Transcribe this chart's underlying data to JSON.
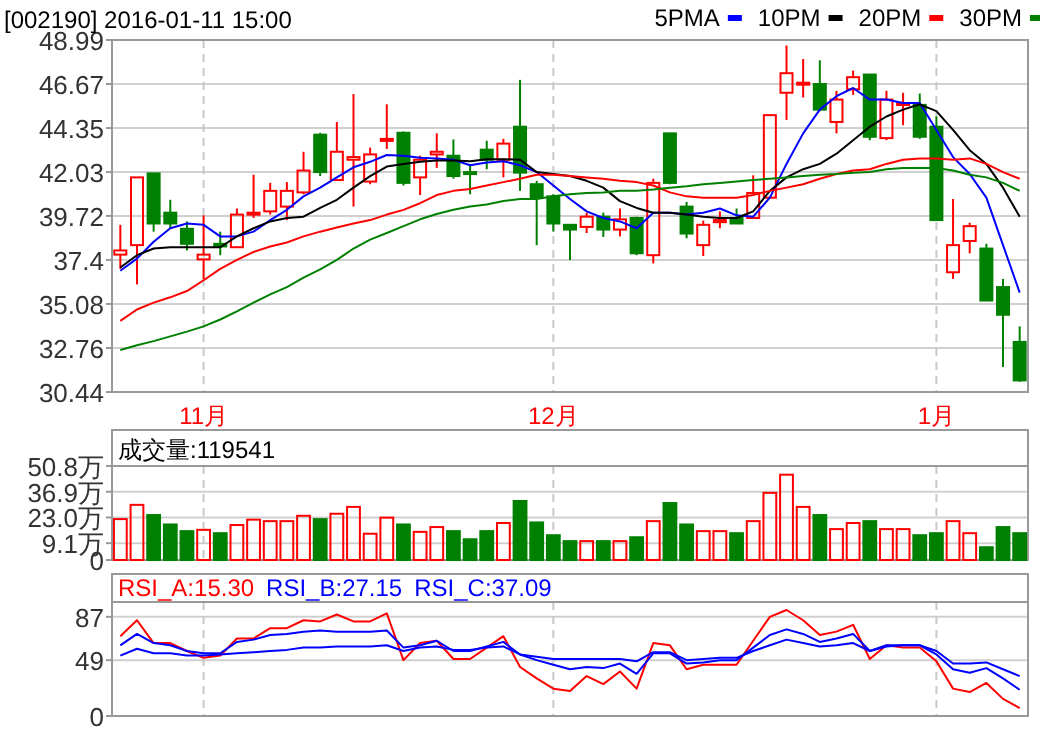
{
  "chart_data": [
    {
      "type": "candlestick",
      "title": "[002190] 2016-01-11 15:00",
      "categories": [
        null,
        null,
        null,
        null,
        null,
        "11月",
        null,
        null,
        null,
        null,
        null,
        null,
        null,
        null,
        null,
        null,
        null,
        null,
        null,
        null,
        null,
        null,
        null,
        null,
        null,
        null,
        "12月",
        null,
        null,
        null,
        null,
        null,
        null,
        null,
        null,
        null,
        null,
        null,
        null,
        null,
        null,
        null,
        null,
        null,
        null,
        null,
        null,
        null,
        null,
        "1月",
        null,
        null,
        null,
        null,
        null
      ],
      "ohlc": [
        [
          37.68,
          39.25,
          36.93,
          37.9
        ],
        [
          38.18,
          41.75,
          36.11,
          41.75
        ],
        [
          41.96,
          41.96,
          38.89,
          39.32
        ],
        [
          39.89,
          40.57,
          39.07,
          39.32
        ],
        [
          39.04,
          39.43,
          37.9,
          38.25
        ],
        [
          37.43,
          39.75,
          36.4,
          37.68
        ],
        [
          38.25,
          38.89,
          37.65,
          38.11
        ],
        [
          38.07,
          40.11,
          38.07,
          39.79
        ],
        [
          39.82,
          41.89,
          39.61,
          39.89
        ],
        [
          39.96,
          41.46,
          39.79,
          41.04
        ],
        [
          40.21,
          41.5,
          39.5,
          41.04
        ],
        [
          40.96,
          43.1,
          40.86,
          42.11
        ],
        [
          44.0,
          44.1,
          41.82,
          42.03
        ],
        [
          41.61,
          44.67,
          41.57,
          43.1
        ],
        [
          42.68,
          46.14,
          40.21,
          42.82
        ],
        [
          41.53,
          43.32,
          41.39,
          42.96
        ],
        [
          43.71,
          45.6,
          43.25,
          43.78
        ],
        [
          44.1,
          44.17,
          41.32,
          41.46
        ],
        [
          41.75,
          42.89,
          40.82,
          42.68
        ],
        [
          42.96,
          44.07,
          42.25,
          43.1
        ],
        [
          42.89,
          43.75,
          41.68,
          41.82
        ],
        [
          42.03,
          42.46,
          40.86,
          41.93
        ],
        [
          43.21,
          43.68,
          42.18,
          42.68
        ],
        [
          42.68,
          43.78,
          41.75,
          43.53
        ],
        [
          44.42,
          46.89,
          41.04,
          42.0
        ],
        [
          41.39,
          41.57,
          38.18,
          40.68
        ],
        [
          40.75,
          40.86,
          38.89,
          39.32
        ],
        [
          39.25,
          39.25,
          37.4,
          39.0
        ],
        [
          39.14,
          39.89,
          38.82,
          39.68
        ],
        [
          39.68,
          39.89,
          38.61,
          39.0
        ],
        [
          39.0,
          40.11,
          38.64,
          39.54
        ],
        [
          39.61,
          39.68,
          37.65,
          37.75
        ],
        [
          37.65,
          41.68,
          37.22,
          41.46
        ],
        [
          44.07,
          44.07,
          41.39,
          41.46
        ],
        [
          40.21,
          40.46,
          38.54,
          38.79
        ],
        [
          38.18,
          39.47,
          37.61,
          39.25
        ],
        [
          39.39,
          39.96,
          39.07,
          39.5
        ],
        [
          39.61,
          40.11,
          39.32,
          39.32
        ],
        [
          39.61,
          41.86,
          39.61,
          40.93
        ],
        [
          40.68,
          45.03,
          40.68,
          45.03
        ],
        [
          46.21,
          48.7,
          44.78,
          47.24
        ],
        [
          46.64,
          47.99,
          45.96,
          46.74
        ],
        [
          46.67,
          47.92,
          45.24,
          45.32
        ],
        [
          44.67,
          46.31,
          44.07,
          45.85
        ],
        [
          46.39,
          47.38,
          46.1,
          47.03
        ],
        [
          47.17,
          47.17,
          43.71,
          43.89
        ],
        [
          43.82,
          46.31,
          43.71,
          45.85
        ],
        [
          45.6,
          46.21,
          44.5,
          45.67
        ],
        [
          45.57,
          46.17,
          43.78,
          43.89
        ],
        [
          44.42,
          44.96,
          39.5,
          39.5
        ],
        [
          36.75,
          40.61,
          36.4,
          38.18
        ],
        [
          38.4,
          39.36,
          37.75,
          39.18
        ],
        [
          38.0,
          38.25,
          35.26,
          35.26
        ],
        [
          35.97,
          36.4,
          31.76,
          34.51
        ],
        [
          33.08,
          33.9,
          30.98,
          31.05
        ]
      ],
      "colors": [
        "#ff0000",
        "#ff0000",
        "#008000",
        "#008000",
        "#008000",
        "#ff0000",
        "#008000",
        "#ff0000",
        "#ff0000",
        "#ff0000",
        "#ff0000",
        "#ff0000",
        "#008000",
        "#ff0000",
        "#ff0000",
        "#ff0000",
        "#ff0000",
        "#008000",
        "#ff0000",
        "#ff0000",
        "#008000",
        "#008000",
        "#008000",
        "#ff0000",
        "#008000",
        "#008000",
        "#008000",
        "#008000",
        "#ff0000",
        "#008000",
        "#ff0000",
        "#008000",
        "#ff0000",
        "#008000",
        "#008000",
        "#ff0000",
        "#ff0000",
        "#008000",
        "#ff0000",
        "#ff0000",
        "#ff0000",
        "#ff0000",
        "#008000",
        "#ff0000",
        "#ff0000",
        "#008000",
        "#ff0000",
        "#ff0000",
        "#008000",
        "#008000",
        "#ff0000",
        "#ff0000",
        "#008000",
        "#008000",
        "#008000"
      ],
      "series": [
        {
          "type": "line",
          "name": "5PMA",
          "color": "#0000ff",
          "values": [
            36.83,
            37.47,
            38.36,
            39.07,
            39.32,
            39.25,
            38.64,
            38.64,
            38.89,
            39.5,
            40.04,
            40.75,
            41.21,
            41.75,
            42.28,
            42.57,
            42.93,
            42.89,
            42.78,
            42.75,
            42.68,
            42.39,
            42.53,
            42.6,
            42.39,
            42.03,
            41.32,
            40.61,
            39.96,
            39.61,
            39.43,
            39.07,
            39.89,
            39.89,
            39.79,
            39.89,
            40.11,
            39.75,
            39.68,
            40.68,
            42.46,
            44.07,
            45.32,
            46.03,
            46.46,
            45.85,
            45.85,
            45.67,
            45.67,
            44.25,
            42.82,
            41.93,
            40.68,
            38.18,
            35.68
          ]
        },
        {
          "type": "line",
          "name": "10PM",
          "color": "#000000",
          "values": [
            37.0,
            37.65,
            38.0,
            38.07,
            38.07,
            38.07,
            38.07,
            38.64,
            39.07,
            39.43,
            39.61,
            39.68,
            40.14,
            40.57,
            41.21,
            41.82,
            42.32,
            42.46,
            42.57,
            42.64,
            42.64,
            42.6,
            42.71,
            42.71,
            42.68,
            42.03,
            41.93,
            41.82,
            41.57,
            41.21,
            40.5,
            40.14,
            39.89,
            39.89,
            39.79,
            39.68,
            39.61,
            39.61,
            39.96,
            41.04,
            41.75,
            42.18,
            42.46,
            43.0,
            43.71,
            44.42,
            44.96,
            45.32,
            45.6,
            45.24,
            44.25,
            43.18,
            42.46,
            41.21,
            39.68
          ]
        },
        {
          "type": "line",
          "name": "20PM",
          "color": "#ff0000",
          "values": [
            34.19,
            34.79,
            35.15,
            35.43,
            35.76,
            36.33,
            36.93,
            37.4,
            37.82,
            38.11,
            38.32,
            38.64,
            38.89,
            39.11,
            39.32,
            39.5,
            39.79,
            40.04,
            40.39,
            40.82,
            41.04,
            41.14,
            41.32,
            41.5,
            41.68,
            41.89,
            41.89,
            41.82,
            41.75,
            41.68,
            41.57,
            41.5,
            41.32,
            40.96,
            40.75,
            40.68,
            40.68,
            40.68,
            40.82,
            41.04,
            41.21,
            41.39,
            41.68,
            41.93,
            42.11,
            42.18,
            42.46,
            42.68,
            42.75,
            42.75,
            42.68,
            42.75,
            42.46,
            42.03,
            41.68
          ]
        },
        {
          "type": "line",
          "name": "30PM",
          "color": "#008000",
          "values": [
            32.65,
            32.9,
            33.12,
            33.37,
            33.62,
            33.9,
            34.26,
            34.69,
            35.15,
            35.58,
            35.97,
            36.47,
            36.9,
            37.4,
            38.0,
            38.47,
            38.82,
            39.18,
            39.54,
            39.82,
            40.04,
            40.21,
            40.32,
            40.5,
            40.61,
            40.61,
            40.75,
            40.86,
            40.93,
            40.96,
            41.04,
            41.04,
            41.11,
            41.21,
            41.28,
            41.39,
            41.46,
            41.53,
            41.61,
            41.68,
            41.75,
            41.82,
            41.89,
            41.93,
            42.0,
            42.03,
            42.18,
            42.25,
            42.25,
            42.25,
            42.11,
            41.89,
            41.75,
            41.46,
            41.04
          ]
        }
      ],
      "ylim": [
        30.44,
        48.99
      ],
      "yticks": [
        30.44,
        32.76,
        35.08,
        37.4,
        39.72,
        42.03,
        44.35,
        46.67,
        48.99
      ],
      "grid": true,
      "legend": "top right"
    },
    {
      "type": "bar",
      "title": "成交量:119541",
      "values": [
        22.1,
        29.8,
        24.3,
        19.2,
        15.6,
        16.3,
        14.5,
        18.9,
        21.8,
        21.0,
        21.0,
        23.9,
        22.1,
        25.0,
        28.7,
        14.2,
        22.9,
        19.2,
        15.2,
        17.8,
        15.6,
        11.2,
        15.6,
        20.0,
        31.9,
        20.3,
        13.4,
        10.2,
        10.2,
        10.2,
        10.2,
        12.3,
        21.0,
        30.8,
        19.2,
        15.6,
        15.6,
        14.5,
        21.0,
        36.3,
        46.1,
        28.7,
        24.3,
        16.7,
        20.0,
        21.0,
        16.7,
        16.7,
        13.4,
        14.5,
        21.0,
        14.5,
        6.9,
        17.8,
        14.5
      ],
      "colors": [
        "#ff0000",
        "#ff0000",
        "#008000",
        "#008000",
        "#008000",
        "#ff0000",
        "#008000",
        "#ff0000",
        "#ff0000",
        "#ff0000",
        "#ff0000",
        "#ff0000",
        "#008000",
        "#ff0000",
        "#ff0000",
        "#ff0000",
        "#ff0000",
        "#008000",
        "#ff0000",
        "#ff0000",
        "#008000",
        "#008000",
        "#008000",
        "#ff0000",
        "#008000",
        "#008000",
        "#008000",
        "#008000",
        "#ff0000",
        "#008000",
        "#ff0000",
        "#008000",
        "#ff0000",
        "#008000",
        "#008000",
        "#ff0000",
        "#ff0000",
        "#008000",
        "#ff0000",
        "#ff0000",
        "#ff0000",
        "#ff0000",
        "#008000",
        "#ff0000",
        "#ff0000",
        "#008000",
        "#ff0000",
        "#ff0000",
        "#008000",
        "#008000",
        "#ff0000",
        "#ff0000",
        "#008000",
        "#008000",
        "#008000"
      ],
      "ylim": [
        0,
        50.8
      ],
      "yticks": [
        0,
        {
          "value": 9.1,
          "label": "9.1万"
        },
        {
          "value": 23.0,
          "label": "23.0万"
        },
        {
          "value": 36.9,
          "label": "36.9万"
        },
        {
          "value": 50.8,
          "label": "50.8万"
        }
      ],
      "grid": true,
      "tick_labels": "y"
    },
    {
      "type": "line",
      "annotations": [
        "RSI_A:15.30",
        "RSI_B:27.15",
        "RSI_C:37.09"
      ],
      "series": [
        {
          "color": "#ff0000",
          "values": [
            70,
            84,
            64,
            64,
            57,
            51,
            53,
            68,
            68,
            77,
            77,
            84,
            83,
            89,
            83,
            83,
            90,
            49,
            64,
            66,
            50,
            50,
            60,
            70,
            43,
            33,
            24,
            22,
            35,
            28,
            39,
            24,
            64,
            62,
            41,
            45,
            45,
            45,
            66,
            87,
            93,
            84,
            71,
            74,
            80,
            50,
            62,
            60,
            60,
            48,
            24,
            21,
            29,
            15,
            7
          ]
        },
        {
          "color": "#0000ff",
          "values": [
            62,
            72,
            64,
            62,
            57,
            55,
            55,
            65,
            67,
            71,
            72,
            74,
            75,
            74,
            74,
            74,
            75,
            60,
            62,
            66,
            57,
            57,
            61,
            65,
            54,
            49,
            45,
            41,
            43,
            42,
            46,
            37,
            55,
            55,
            46,
            47,
            49,
            49,
            60,
            71,
            76,
            72,
            65,
            68,
            72,
            57,
            61,
            62,
            62,
            54,
            41,
            38,
            42,
            33,
            23
          ]
        },
        {
          "color": "#0000ff",
          "values": [
            53,
            59,
            55,
            55,
            53,
            53,
            54,
            55,
            56,
            57,
            58,
            60,
            60,
            61,
            61,
            61,
            62,
            57,
            60,
            61,
            58,
            58,
            60,
            61,
            54,
            52,
            50,
            50,
            50,
            50,
            50,
            48,
            56,
            56,
            49,
            50,
            51,
            51,
            57,
            62,
            67,
            64,
            61,
            62,
            64,
            57,
            62,
            62,
            62,
            57,
            46,
            46,
            47,
            41,
            35
          ]
        }
      ],
      "ylim": [
        0,
        100
      ],
      "yticks": [
        0,
        49,
        87
      ],
      "grid": true,
      "tick_labels": "y"
    }
  ]
}
